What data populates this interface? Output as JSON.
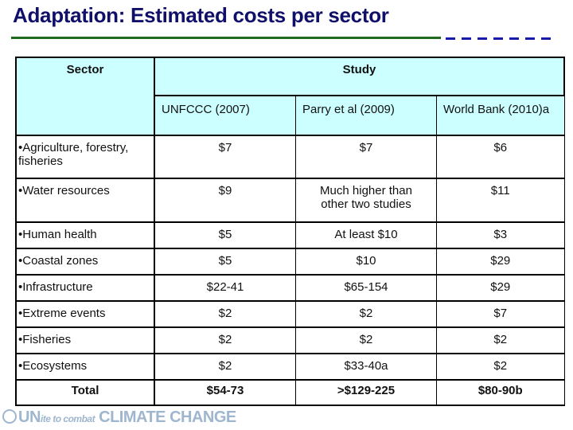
{
  "title": "Adaptation: Estimated costs per sector",
  "colors": {
    "title": "#10106a",
    "rule_solid": "#1e6b1e",
    "rule_dash": "#1a1aa8",
    "header_bg": "#ccffff"
  },
  "table": {
    "sector_header": "Sector",
    "study_header": "Study",
    "studies": [
      "UNFCCC (2007)",
      "Parry et al (2009)",
      "World Bank (2010)a"
    ],
    "rows": [
      {
        "sector": "•Agriculture, forestry, fisheries",
        "values": [
          "$7",
          "$7",
          "$6"
        ]
      },
      {
        "sector": "•Water resources",
        "values": [
          "$9",
          "Much higher than other two studies",
          "$11"
        ]
      },
      {
        "sector": "•Human health",
        "values": [
          "$5",
          "At least $10",
          "$3"
        ]
      },
      {
        "sector": "•Coastal zones",
        "values": [
          "$5",
          "$10",
          "$29"
        ]
      },
      {
        "sector": "•Infrastructure",
        "values": [
          "$22-41",
          "$65-154",
          "$29"
        ]
      },
      {
        "sector": "•Extreme events",
        "values": [
          "$2",
          "$2",
          "$7"
        ]
      },
      {
        "sector": "•Fisheries",
        "values": [
          "$2",
          "$2",
          "$2"
        ]
      },
      {
        "sector": "•Ecosystems",
        "values": [
          "$2",
          "$33-40a",
          "$2"
        ]
      }
    ],
    "total": {
      "label": "Total",
      "values": [
        "$54-73",
        ">$129-225",
        "$80-90b"
      ]
    }
  },
  "footer_logo": {
    "un": "UN",
    "ite": "ite to combat",
    "climate": "CLIMATE CHANGE"
  }
}
